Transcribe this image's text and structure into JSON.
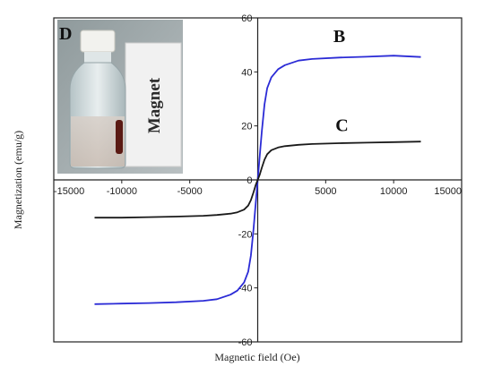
{
  "chart_data": {
    "type": "line",
    "xlabel": "Magnetic field (Oe)",
    "ylabel": "Magnetization (emu/g)",
    "xlim": [
      -15000,
      15000
    ],
    "ylim": [
      -60,
      60
    ],
    "x_ticks": [
      "-15000",
      "-10000",
      "-5000",
      "0",
      "5000",
      "10000",
      "15000"
    ],
    "y_ticks": [
      "-60",
      "-40",
      "-20",
      "0",
      "20",
      "40",
      "60"
    ],
    "series": [
      {
        "name": "B",
        "color": "#2b2bd6",
        "x": [
          -12000,
          -10000,
          -8000,
          -6000,
          -4000,
          -3000,
          -2000,
          -1500,
          -1000,
          -700,
          -500,
          -300,
          -150,
          0,
          150,
          300,
          500,
          700,
          1000,
          1500,
          2000,
          3000,
          4000,
          6000,
          8000,
          10000,
          12000
        ],
        "y": [
          -46,
          -45.8,
          -45.6,
          -45.3,
          -44.8,
          -44.2,
          -42.5,
          -41,
          -38,
          -34,
          -28,
          -18,
          -9,
          0,
          9,
          18,
          28,
          34,
          38,
          41,
          42.5,
          44.2,
          44.8,
          45.3,
          45.6,
          46,
          45.5
        ]
      },
      {
        "name": "C",
        "color": "#1a1a1a",
        "x": [
          -12000,
          -10000,
          -8000,
          -6000,
          -4000,
          -3000,
          -2000,
          -1500,
          -1000,
          -700,
          -500,
          -300,
          -150,
          0,
          150,
          300,
          500,
          700,
          1000,
          1500,
          2000,
          3000,
          4000,
          6000,
          8000,
          10000,
          12000
        ],
        "y": [
          -14,
          -14,
          -13.8,
          -13.6,
          -13.3,
          -13,
          -12.5,
          -12,
          -11,
          -9.5,
          -7.5,
          -4.5,
          -2,
          0,
          2,
          4.5,
          7.5,
          9.5,
          11,
          12,
          12.5,
          13,
          13.3,
          13.6,
          13.8,
          14,
          14.2
        ]
      }
    ],
    "annotations": [
      {
        "text": "B",
        "x": 6000,
        "y": 51
      },
      {
        "text": "C",
        "x": 6200,
        "y": 18
      }
    ]
  },
  "inset": {
    "letter": "D",
    "label": "Magnet"
  }
}
